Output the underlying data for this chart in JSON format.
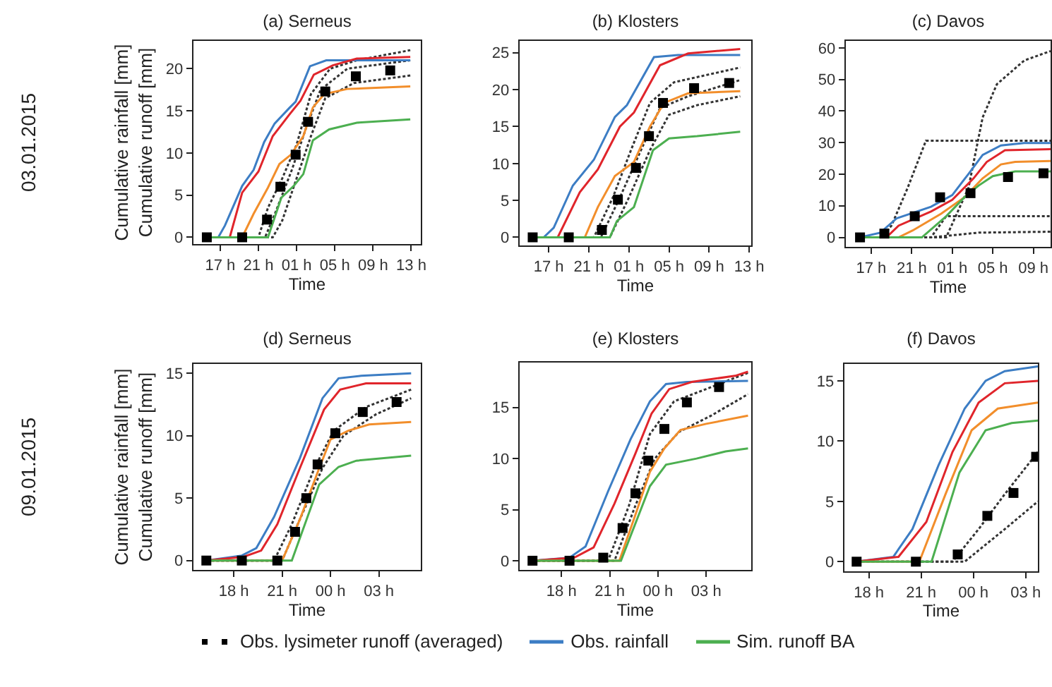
{
  "chart_data": [
    {
      "type": "line",
      "title": "(a) Serneus",
      "xlabel": "Time",
      "ylabel": "Cumulative rainfall [mm]\nCumulative runoff [mm]",
      "annotations": [
        "03.01.2015"
      ],
      "legend": "bottom",
      "xlim": [
        "2015-01-03T14:12",
        "2015-01-04T14:00"
      ],
      "xticks": [
        {
          "value": "2015-01-03T17:00",
          "label": "17 h"
        },
        {
          "value": "2015-01-03T21:00",
          "label": "21 h"
        },
        {
          "value": "2015-01-04T01:00",
          "label": "01 h"
        },
        {
          "value": "2015-01-04T05:00",
          "label": "05 h"
        },
        {
          "value": "2015-01-04T09:00",
          "label": "09 h"
        },
        {
          "value": "2015-01-04T13:00",
          "label": "13 h"
        }
      ],
      "ylim": [
        -0.8,
        23.3
      ],
      "yticks": [
        0,
        5,
        10,
        15,
        20
      ],
      "series": [
        {
          "type": "line",
          "line_style": "dotted",
          "color": "#333333",
          "x": [
            "2015-01-03T15:36",
            "2015-01-03T21:00",
            "2015-01-03T22:00",
            "2015-01-03T23:30",
            "2015-01-04T01:00",
            "2015-01-04T02:30",
            "2015-01-04T04:30",
            "2015-01-04T07:18",
            "2015-01-04T12:54"
          ],
          "values": [
            0,
            0,
            3.5,
            7,
            11,
            17,
            20,
            21,
            22.2
          ]
        },
        {
          "type": "line",
          "line_style": "dotted",
          "color": "#333333",
          "x": [
            "2015-01-03T15:36",
            "2015-01-03T21:42",
            "2015-01-03T22:48",
            "2015-01-04T00:30",
            "2015-01-04T02:00",
            "2015-01-04T03:30",
            "2015-01-04T06:18",
            "2015-01-04T12:54"
          ],
          "values": [
            0,
            0,
            3,
            8,
            13,
            17.5,
            20,
            21
          ]
        },
        {
          "type": "line",
          "line_style": "dotted",
          "color": "#333333",
          "x": [
            "2015-01-03T15:36",
            "2015-01-03T22:30",
            "2015-01-03T23:30",
            "2015-01-04T01:00",
            "2015-01-04T02:30",
            "2015-01-04T04:00",
            "2015-01-04T07:00",
            "2015-01-04T12:54"
          ],
          "values": [
            0,
            0,
            2,
            7,
            12,
            16.5,
            18.3,
            19.2
          ]
        },
        {
          "type": "line",
          "name": "Obs. rainfall",
          "color": "#3c7dc4",
          "x": [
            "2015-01-03T15:36",
            "2015-01-03T16:48",
            "2015-01-03T17:30",
            "2015-01-03T19:18",
            "2015-01-03T20:30",
            "2015-01-03T21:36",
            "2015-01-03T22:42",
            "2015-01-04T00:12",
            "2015-01-04T00:54",
            "2015-01-04T02:24",
            "2015-01-04T04:06",
            "2015-01-04T12:54"
          ],
          "values": [
            0,
            0,
            1.4,
            6.1,
            8.0,
            11.3,
            13.5,
            15.3,
            16.1,
            20.3,
            21.0,
            21.0
          ]
        },
        {
          "type": "line",
          "color": "#e0252b",
          "x": [
            "2015-01-03T15:36",
            "2015-01-03T18:00",
            "2015-01-03T19:18",
            "2015-01-03T21:00",
            "2015-01-03T22:30",
            "2015-01-04T00:12",
            "2015-01-04T01:24",
            "2015-01-04T02:48",
            "2015-01-04T04:48",
            "2015-01-04T07:18",
            "2015-01-04T12:54"
          ],
          "values": [
            0,
            0,
            5.3,
            7.8,
            12.0,
            14.5,
            16.2,
            19.3,
            20.4,
            21.2,
            21.4
          ]
        },
        {
          "type": "line",
          "color": "#f28e2b",
          "x": [
            "2015-01-03T15:36",
            "2015-01-03T19:18",
            "2015-01-03T20:30",
            "2015-01-03T22:00",
            "2015-01-03T23:12",
            "2015-01-04T00:24",
            "2015-01-04T01:42",
            "2015-01-04T02:42",
            "2015-01-04T03:54",
            "2015-01-04T06:18",
            "2015-01-04T12:54"
          ],
          "values": [
            0,
            0,
            2.8,
            5.9,
            8.7,
            9.8,
            12.0,
            15.4,
            17.0,
            17.6,
            17.9
          ]
        },
        {
          "type": "line",
          "name": "Sim. runoff BA",
          "color": "#4caf50",
          "x": [
            "2015-01-03T15:36",
            "2015-01-03T22:00",
            "2015-01-03T23:24",
            "2015-01-04T00:42",
            "2015-01-04T01:42",
            "2015-01-04T02:42",
            "2015-01-04T04:24",
            "2015-01-04T07:18",
            "2015-01-04T12:54"
          ],
          "values": [
            0,
            0,
            4.7,
            6.1,
            7.5,
            11.5,
            12.8,
            13.6,
            14.0
          ]
        },
        {
          "type": "scatter",
          "name": "Obs. lysimeter runoff (averaged)",
          "marker": "square",
          "color": "#000000",
          "x": [
            "2015-01-03T15:36",
            "2015-01-03T19:18",
            "2015-01-03T21:54",
            "2015-01-03T23:18",
            "2015-01-04T00:54",
            "2015-01-04T02:12",
            "2015-01-04T04:00",
            "2015-01-04T07:12",
            "2015-01-04T10:48"
          ],
          "values": [
            0,
            0,
            2.1,
            6.0,
            9.8,
            13.7,
            17.3,
            19.1,
            19.8
          ]
        }
      ]
    },
    {
      "type": "line",
      "title": "(b) Klosters",
      "xlabel": "Time",
      "xlim": [
        "2015-01-03T14:06",
        "2015-01-04T13:12"
      ],
      "xticks": [
        {
          "value": "2015-01-03T17:00",
          "label": "17 h"
        },
        {
          "value": "2015-01-03T21:00",
          "label": "21 h"
        },
        {
          "value": "2015-01-04T01:00",
          "label": "01 h"
        },
        {
          "value": "2015-01-04T05:00",
          "label": "05 h"
        },
        {
          "value": "2015-01-04T09:00",
          "label": "09 h"
        },
        {
          "value": "2015-01-04T13:00",
          "label": "13 h"
        }
      ],
      "ylim": [
        -1.1,
        26.6
      ],
      "yticks": [
        0,
        5,
        10,
        15,
        20,
        25
      ],
      "series": [
        {
          "type": "line",
          "line_style": "dotted",
          "color": "#333333",
          "x": [
            "2015-01-03T15:24",
            "2015-01-03T21:30",
            "2015-01-03T23:24",
            "2015-01-04T01:12",
            "2015-01-04T03:06",
            "2015-01-04T05:30",
            "2015-01-04T12:06"
          ],
          "values": [
            0,
            0,
            5.4,
            11.8,
            18.2,
            21.0,
            23.0
          ]
        },
        {
          "type": "line",
          "line_style": "dotted",
          "color": "#333333",
          "x": [
            "2015-01-03T15:24",
            "2015-01-03T22:12",
            "2015-01-04T00:06",
            "2015-01-04T02:12",
            "2015-01-04T04:06",
            "2015-01-04T06:54",
            "2015-01-04T12:06"
          ],
          "values": [
            0,
            0,
            5.4,
            11.8,
            17.5,
            19.1,
            21.3
          ]
        },
        {
          "type": "line",
          "line_style": "dotted",
          "color": "#333333",
          "x": [
            "2015-01-03T15:24",
            "2015-01-03T23:06",
            "2015-01-04T01:00",
            "2015-01-04T03:06",
            "2015-01-04T05:00",
            "2015-01-04T07:48",
            "2015-01-04T12:06"
          ],
          "values": [
            0,
            0,
            5.4,
            11.8,
            16.6,
            17.9,
            19.1
          ]
        },
        {
          "type": "line",
          "name": "Obs. rainfall",
          "color": "#3c7dc4",
          "x": [
            "2015-01-03T15:24",
            "2015-01-03T16:30",
            "2015-01-03T17:30",
            "2015-01-03T19:24",
            "2015-01-03T21:30",
            "2015-01-03T23:36",
            "2015-01-04T00:48",
            "2015-01-04T03:30",
            "2015-01-04T05:54",
            "2015-01-04T12:06"
          ],
          "values": [
            0,
            0,
            1.3,
            7.0,
            10.5,
            16.3,
            17.9,
            24.4,
            24.7,
            24.7
          ]
        },
        {
          "type": "line",
          "color": "#e0252b",
          "x": [
            "2015-01-03T15:24",
            "2015-01-03T17:54",
            "2015-01-03T20:06",
            "2015-01-03T21:54",
            "2015-01-04T00:06",
            "2015-01-04T01:30",
            "2015-01-04T04:06",
            "2015-01-04T06:54",
            "2015-01-04T12:06"
          ],
          "values": [
            0,
            0,
            6.1,
            9.2,
            15.0,
            16.9,
            23.3,
            24.9,
            25.5
          ]
        },
        {
          "type": "line",
          "color": "#f28e2b",
          "x": [
            "2015-01-03T15:24",
            "2015-01-03T20:36",
            "2015-01-03T21:54",
            "2015-01-03T23:36",
            "2015-01-04T01:30",
            "2015-01-04T03:06",
            "2015-01-04T04:30",
            "2015-01-04T06:54",
            "2015-01-04T12:06"
          ],
          "values": [
            0,
            0,
            4.1,
            8.3,
            10.2,
            15.0,
            18.2,
            19.5,
            19.8
          ]
        },
        {
          "type": "line",
          "name": "Sim. runoff BA",
          "color": "#4caf50",
          "x": [
            "2015-01-03T15:24",
            "2015-01-03T23:06",
            "2015-01-03T23:48",
            "2015-01-04T01:30",
            "2015-01-04T03:24",
            "2015-01-04T05:00",
            "2015-01-04T07:48",
            "2015-01-04T12:06"
          ],
          "values": [
            0,
            0,
            2.2,
            4.1,
            11.8,
            13.4,
            13.7,
            14.3
          ]
        },
        {
          "type": "scatter",
          "name": "Obs. lysimeter runoff (averaged)",
          "marker": "square",
          "color": "#000000",
          "x": [
            "2015-01-03T15:24",
            "2015-01-03T19:00",
            "2015-01-03T22:18",
            "2015-01-03T23:54",
            "2015-01-04T01:42",
            "2015-01-04T03:00",
            "2015-01-04T04:24",
            "2015-01-04T07:30",
            "2015-01-04T11:00"
          ],
          "values": [
            0,
            0,
            1.0,
            5.1,
            9.4,
            13.7,
            18.2,
            20.2,
            20.9
          ]
        }
      ]
    },
    {
      "type": "line",
      "title": "(c) Davos",
      "xlabel": "Time",
      "xlim": [
        "2015-01-03T14:30",
        "2015-01-04T10:42"
      ],
      "xticks": [
        {
          "value": "2015-01-03T17:00",
          "label": "17 h"
        },
        {
          "value": "2015-01-03T21:00",
          "label": "21 h"
        },
        {
          "value": "2015-01-04T01:00",
          "label": "01 h"
        },
        {
          "value": "2015-01-04T05:00",
          "label": "05 h"
        },
        {
          "value": "2015-01-04T09:00",
          "label": "09 h"
        }
      ],
      "ylim": [
        -3,
        62.2
      ],
      "yticks": [
        0,
        10,
        20,
        30,
        40,
        50,
        60
      ],
      "series": [
        {
          "type": "line",
          "line_style": "dotted",
          "color": "#333333",
          "x": [
            "2015-01-03T15:54",
            "2015-01-04T00:24",
            "2015-01-04T02:36",
            "2015-01-04T04:00",
            "2015-01-04T05:24",
            "2015-01-04T08:06",
            "2015-01-04T10:42"
          ],
          "values": [
            0,
            0,
            15.7,
            38,
            48.5,
            56,
            59
          ]
        },
        {
          "type": "line",
          "line_style": "dotted",
          "color": "#333333",
          "x": [
            "2015-01-03T15:54",
            "2015-01-03T18:00",
            "2015-01-03T19:00",
            "2015-01-03T20:36",
            "2015-01-03T22:24",
            "2015-01-04T10:42"
          ],
          "values": [
            0,
            0,
            3.7,
            15.7,
            30.6,
            30.6
          ]
        },
        {
          "type": "line",
          "line_style": "dotted",
          "color": "#333333",
          "x": [
            "2015-01-03T15:54",
            "2015-01-03T22:54",
            "2015-01-04T00:24",
            "2015-01-04T10:42"
          ],
          "values": [
            0,
            0,
            6.7,
            6.7
          ]
        },
        {
          "type": "line",
          "line_style": "dotted",
          "color": "#333333",
          "x": [
            "2015-01-03T15:54",
            "2015-01-03T22:54",
            "2015-01-04T03:36",
            "2015-01-04T10:42"
          ],
          "values": [
            0,
            0,
            1.5,
            1.8
          ]
        },
        {
          "type": "line",
          "name": "Obs. rainfall",
          "color": "#3c7dc4",
          "x": [
            "2015-01-03T15:54",
            "2015-01-03T17:54",
            "2015-01-03T19:30",
            "2015-01-03T22:54",
            "2015-01-04T01:00",
            "2015-01-04T02:36",
            "2015-01-04T04:00",
            "2015-01-04T05:48",
            "2015-01-04T08:06",
            "2015-01-04T10:42"
          ],
          "values": [
            0,
            1.5,
            6.0,
            9.7,
            13.4,
            20.1,
            26.1,
            29.1,
            29.9,
            29.9
          ]
        },
        {
          "type": "line",
          "color": "#e0252b",
          "x": [
            "2015-01-03T15:54",
            "2015-01-03T18:30",
            "2015-01-03T19:42",
            "2015-01-03T22:54",
            "2015-01-04T01:00",
            "2015-01-04T03:06",
            "2015-01-04T04:24",
            "2015-01-04T06:12",
            "2015-01-04T10:42"
          ],
          "values": [
            0,
            0,
            3.7,
            8.2,
            11.9,
            18.7,
            23.9,
            27.6,
            27.9
          ]
        },
        {
          "type": "line",
          "color": "#f28e2b",
          "x": [
            "2015-01-03T15:54",
            "2015-01-03T19:42",
            "2015-01-03T21:06",
            "2015-01-03T23:54",
            "2015-01-04T02:12",
            "2015-01-04T04:00",
            "2015-01-04T05:48",
            "2015-01-04T07:12",
            "2015-01-04T10:42"
          ],
          "values": [
            0,
            0,
            2.2,
            7.5,
            12.7,
            18.7,
            23.1,
            23.9,
            24.2
          ]
        },
        {
          "type": "line",
          "name": "Sim. runoff BA",
          "color": "#4caf50",
          "x": [
            "2015-01-03T15:54",
            "2015-01-03T22:00",
            "2015-01-04T00:24",
            "2015-01-04T02:12",
            "2015-01-04T03:36",
            "2015-01-04T05:00",
            "2015-01-04T07:12",
            "2015-01-04T10:42"
          ],
          "values": [
            0,
            0,
            6.7,
            12.7,
            16.4,
            19.4,
            20.9,
            20.9
          ]
        },
        {
          "type": "scatter",
          "name": "Obs. lysimeter runoff (averaged)",
          "marker": "square",
          "color": "#000000",
          "x": [
            "2015-01-03T15:54",
            "2015-01-03T18:18",
            "2015-01-03T21:18",
            "2015-01-03T23:48",
            "2015-01-04T02:48",
            "2015-01-04T06:30",
            "2015-01-04T10:00"
          ],
          "values": [
            0,
            1.2,
            6.7,
            12.7,
            14,
            19.1,
            20.3
          ]
        }
      ]
    },
    {
      "type": "line",
      "title": "(d) Serneus",
      "xlabel": "Time",
      "ylabel": "Cumulative rainfall [mm]\nCumulative runoff [mm]",
      "annotations": [
        "09.01.2015"
      ],
      "xlim": [
        "2015-01-09T15:30",
        "2015-01-10T05:36"
      ],
      "xticks": [
        {
          "value": "2015-01-09T18:00",
          "label": "18 h"
        },
        {
          "value": "2015-01-09T21:00",
          "label": "21 h"
        },
        {
          "value": "2015-01-10T00:00",
          "label": "00 h"
        },
        {
          "value": "2015-01-10T03:00",
          "label": "03 h"
        }
      ],
      "ylim": [
        -0.75,
        15.75
      ],
      "yticks": [
        0,
        5,
        10,
        15
      ],
      "series": [
        {
          "type": "line",
          "line_style": "dotted",
          "color": "#333333",
          "x": [
            "2015-01-09T16:18",
            "2015-01-09T20:30",
            "2015-01-09T21:36",
            "2015-01-09T23:00",
            "2015-01-10T00:12",
            "2015-01-10T02:12",
            "2015-01-10T05:00"
          ],
          "values": [
            0,
            0,
            2.9,
            7.4,
            10.4,
            12.3,
            13.7
          ]
        },
        {
          "type": "line",
          "line_style": "dotted",
          "color": "#333333",
          "x": [
            "2015-01-09T16:18",
            "2015-01-09T21:00",
            "2015-01-09T22:06",
            "2015-01-09T23:30",
            "2015-01-10T00:48",
            "2015-01-10T02:48",
            "2015-01-10T05:00"
          ],
          "values": [
            0,
            0,
            3.3,
            7.4,
            10.0,
            11.7,
            13.0
          ]
        },
        {
          "type": "line",
          "name": "Obs. rainfall",
          "color": "#3c7dc4",
          "x": [
            "2015-01-09T16:18",
            "2015-01-09T18:30",
            "2015-01-09T19:24",
            "2015-01-09T20:30",
            "2015-01-09T22:06",
            "2015-01-09T23:30",
            "2015-01-10T00:30",
            "2015-01-10T01:54",
            "2015-01-10T05:00"
          ],
          "values": [
            0,
            0.4,
            1.0,
            3.5,
            8.2,
            13.0,
            14.6,
            14.8,
            15.0
          ]
        },
        {
          "type": "line",
          "color": "#e0252b",
          "x": [
            "2015-01-09T16:18",
            "2015-01-09T18:36",
            "2015-01-09T19:42",
            "2015-01-09T20:42",
            "2015-01-09T22:06",
            "2015-01-09T23:36",
            "2015-01-10T00:36",
            "2015-01-10T02:12",
            "2015-01-10T05:00"
          ],
          "values": [
            0,
            0.3,
            0.8,
            2.9,
            7.4,
            12.1,
            13.7,
            14.2,
            14.2
          ]
        },
        {
          "type": "line",
          "color": "#f28e2b",
          "x": [
            "2015-01-09T16:18",
            "2015-01-09T21:00",
            "2015-01-09T22:06",
            "2015-01-09T23:18",
            "2015-01-10T00:00",
            "2015-01-10T01:06",
            "2015-01-10T02:24",
            "2015-01-10T05:00"
          ],
          "values": [
            0,
            0,
            3.3,
            7.4,
            9.7,
            10.4,
            10.9,
            11.1
          ]
        },
        {
          "type": "line",
          "name": "Sim. runoff BA",
          "color": "#4caf50",
          "x": [
            "2015-01-09T16:18",
            "2015-01-09T21:36",
            "2015-01-09T23:18",
            "2015-01-10T00:30",
            "2015-01-10T01:36",
            "2015-01-10T05:00"
          ],
          "values": [
            0,
            0,
            6.1,
            7.5,
            8.0,
            8.4
          ]
        },
        {
          "type": "scatter",
          "name": "Obs. lysimeter runoff (averaged)",
          "marker": "square",
          "color": "#000000",
          "x": [
            "2015-01-09T16:18",
            "2015-01-09T18:30",
            "2015-01-09T20:42",
            "2015-01-09T21:48",
            "2015-01-09T22:30",
            "2015-01-09T23:12",
            "2015-01-10T00:18",
            "2015-01-10T02:00",
            "2015-01-10T04:06"
          ],
          "values": [
            0,
            0,
            0,
            2.3,
            5.0,
            7.7,
            10.2,
            11.9,
            12.7
          ]
        }
      ]
    },
    {
      "type": "line",
      "title": "(e) Klosters",
      "xlabel": "Time",
      "xlim": [
        "2015-01-09T15:24",
        "2015-01-10T05:48"
      ],
      "xticks": [
        {
          "value": "2015-01-09T18:00",
          "label": "18 h"
        },
        {
          "value": "2015-01-09T21:00",
          "label": "21 h"
        },
        {
          "value": "2015-01-10T00:00",
          "label": "00 h"
        },
        {
          "value": "2015-01-10T03:00",
          "label": "03 h"
        }
      ],
      "ylim": [
        -0.9,
        19.4
      ],
      "yticks": [
        0,
        5,
        10,
        15
      ],
      "series": [
        {
          "type": "line",
          "line_style": "dotted",
          "color": "#333333",
          "x": [
            "2015-01-09T16:12",
            "2015-01-09T20:54",
            "2015-01-09T22:12",
            "2015-01-09T23:30",
            "2015-01-10T01:00",
            "2015-01-10T03:00",
            "2015-01-10T05:36"
          ],
          "values": [
            0,
            0,
            5.4,
            12.4,
            15.6,
            16.8,
            18.4
          ]
        },
        {
          "type": "line",
          "line_style": "dotted",
          "color": "#333333",
          "x": [
            "2015-01-09T16:12",
            "2015-01-09T21:18",
            "2015-01-09T22:36",
            "2015-01-09T23:48",
            "2015-01-10T01:18",
            "2015-01-10T03:18",
            "2015-01-10T05:36"
          ],
          "values": [
            0,
            0,
            5.4,
            10.0,
            12.6,
            14.2,
            16.3
          ]
        },
        {
          "type": "line",
          "name": "Obs. rainfall",
          "color": "#3c7dc4",
          "x": [
            "2015-01-09T16:12",
            "2015-01-09T18:30",
            "2015-01-09T19:30",
            "2015-01-09T20:54",
            "2015-01-09T22:18",
            "2015-01-09T23:30",
            "2015-01-10T00:30",
            "2015-01-10T01:48",
            "2015-01-10T05:36"
          ],
          "values": [
            0,
            0.3,
            1.4,
            6.8,
            11.9,
            15.6,
            17.3,
            17.5,
            17.6
          ]
        },
        {
          "type": "line",
          "color": "#e0252b",
          "x": [
            "2015-01-09T16:12",
            "2015-01-09T18:48",
            "2015-01-09T20:00",
            "2015-01-09T21:18",
            "2015-01-09T22:36",
            "2015-01-09T23:36",
            "2015-01-10T00:42",
            "2015-01-10T02:06",
            "2015-01-10T04:48",
            "2015-01-10T05:36"
          ],
          "values": [
            0,
            0.3,
            1.3,
            5.6,
            10.5,
            14.4,
            16.8,
            17.5,
            18.1,
            18.5
          ]
        },
        {
          "type": "line",
          "color": "#f28e2b",
          "x": [
            "2015-01-09T16:12",
            "2015-01-09T21:36",
            "2015-01-09T22:36",
            "2015-01-09T23:30",
            "2015-01-10T00:24",
            "2015-01-10T01:24",
            "2015-01-10T03:00",
            "2015-01-10T05:36"
          ],
          "values": [
            0,
            0,
            4.5,
            8.7,
            11.0,
            12.8,
            13.4,
            14.2
          ]
        },
        {
          "type": "line",
          "name": "Sim. runoff BA",
          "color": "#4caf50",
          "x": [
            "2015-01-09T16:12",
            "2015-01-09T21:42",
            "2015-01-09T23:30",
            "2015-01-10T00:30",
            "2015-01-10T02:24",
            "2015-01-10T04:12",
            "2015-01-10T05:36"
          ],
          "values": [
            0,
            0,
            7.3,
            9.4,
            10.0,
            10.7,
            11.0
          ]
        },
        {
          "type": "scatter",
          "name": "Obs. lysimeter runoff (averaged)",
          "marker": "square",
          "color": "#000000",
          "x": [
            "2015-01-09T16:12",
            "2015-01-09T18:30",
            "2015-01-09T20:36",
            "2015-01-09T21:48",
            "2015-01-09T22:36",
            "2015-01-09T23:24",
            "2015-01-10T00:24",
            "2015-01-10T01:48",
            "2015-01-10T03:48"
          ],
          "values": [
            0,
            0,
            0.3,
            3.2,
            6.6,
            9.8,
            12.9,
            15.5,
            17.0
          ]
        }
      ]
    },
    {
      "type": "line",
      "title": "(f) Davos",
      "xlabel": "Time",
      "xlim": [
        "2015-01-09T16:36",
        "2015-01-10T03:42"
      ],
      "xticks": [
        {
          "value": "2015-01-09T18:00",
          "label": "18 h"
        },
        {
          "value": "2015-01-09T21:00",
          "label": "21 h"
        },
        {
          "value": "2015-01-10T00:00",
          "label": "00 h"
        },
        {
          "value": "2015-01-10T03:00",
          "label": "03 h"
        }
      ],
      "ylim": [
        -0.8,
        16.4
      ],
      "yticks": [
        0,
        5,
        10,
        15
      ],
      "series": [
        {
          "type": "line",
          "line_style": "dotted",
          "color": "#333333",
          "x": [
            "2015-01-09T17:18",
            "2015-01-09T22:48",
            "2015-01-10T00:18",
            "2015-01-10T01:48",
            "2015-01-10T03:42"
          ],
          "values": [
            0,
            0,
            2.7,
            5.6,
            9.1
          ]
        },
        {
          "type": "line",
          "line_style": "dotted",
          "color": "#333333",
          "x": [
            "2015-01-09T17:18",
            "2015-01-09T23:30",
            "2015-01-10T01:48",
            "2015-01-10T03:42"
          ],
          "values": [
            0,
            0,
            2.7,
            5.0
          ]
        },
        {
          "type": "line",
          "name": "Obs. rainfall",
          "color": "#3c7dc4",
          "x": [
            "2015-01-09T17:18",
            "2015-01-09T19:24",
            "2015-01-09T20:30",
            "2015-01-09T22:00",
            "2015-01-09T23:30",
            "2015-01-10T00:42",
            "2015-01-10T01:48",
            "2015-01-10T03:42"
          ],
          "values": [
            0,
            0.4,
            2.7,
            8.0,
            12.7,
            15.0,
            15.8,
            16.2
          ]
        },
        {
          "type": "line",
          "color": "#e0252b",
          "x": [
            "2015-01-09T17:18",
            "2015-01-09T19:42",
            "2015-01-09T21:18",
            "2015-01-09T22:48",
            "2015-01-10T00:18",
            "2015-01-10T01:48",
            "2015-01-10T03:42"
          ],
          "values": [
            0,
            0.4,
            3.3,
            9.1,
            13.2,
            14.8,
            15.0
          ]
        },
        {
          "type": "line",
          "color": "#f28e2b",
          "x": [
            "2015-01-09T17:18",
            "2015-01-09T20:54",
            "2015-01-09T22:24",
            "2015-01-09T23:54",
            "2015-01-10T01:24",
            "2015-01-10T03:42"
          ],
          "values": [
            0,
            0,
            5.6,
            10.9,
            12.7,
            13.2
          ]
        },
        {
          "type": "line",
          "name": "Sim. runoff BA",
          "color": "#4caf50",
          "x": [
            "2015-01-09T17:18",
            "2015-01-09T21:36",
            "2015-01-09T23:12",
            "2015-01-10T00:42",
            "2015-01-10T02:12",
            "2015-01-10T03:42"
          ],
          "values": [
            0,
            0,
            7.4,
            10.9,
            11.5,
            11.7
          ]
        },
        {
          "type": "scatter",
          "name": "Obs. lysimeter runoff (averaged)",
          "marker": "square",
          "color": "#000000",
          "x": [
            "2015-01-09T17:18",
            "2015-01-09T20:42",
            "2015-01-09T23:06",
            "2015-01-10T00:48",
            "2015-01-10T02:18",
            "2015-01-10T03:36"
          ],
          "values": [
            0,
            0,
            0.6,
            3.8,
            5.7,
            8.7
          ]
        }
      ]
    }
  ]
}
